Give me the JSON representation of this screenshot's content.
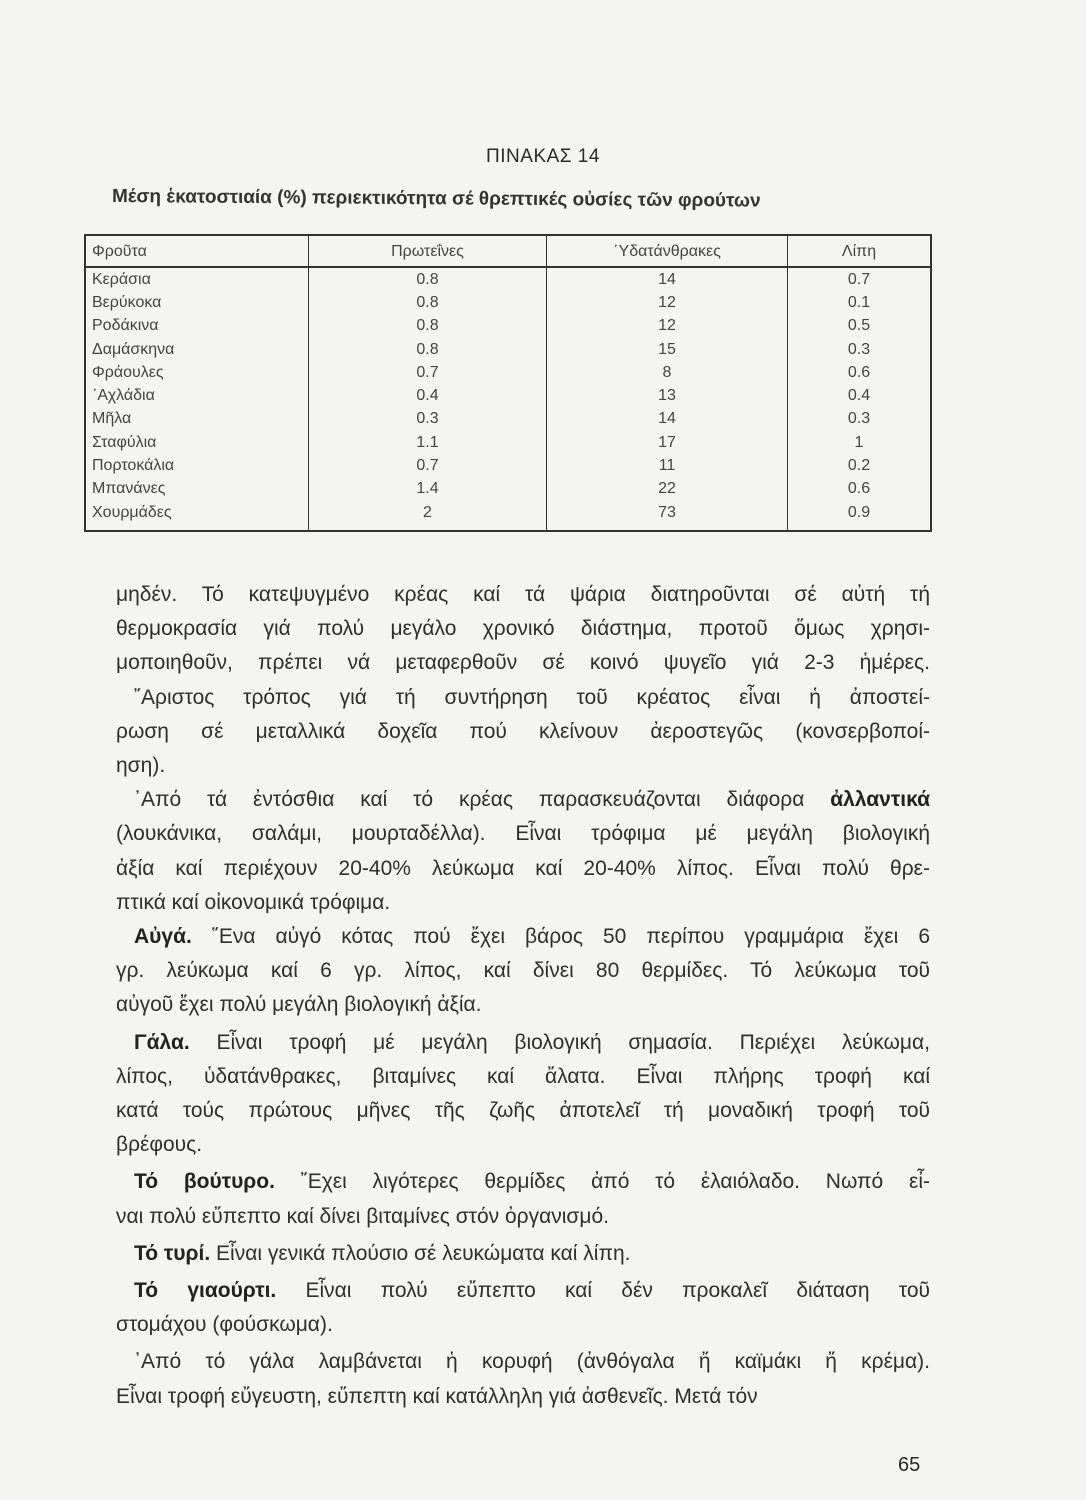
{
  "table": {
    "label": "ΠΙΝΑΚΑΣ 14",
    "caption": "Μέση ἑκατοστιαία (%) περιεκτικότητα σέ θρεπτικές οὐσίες τῶν φρούτων",
    "headers": [
      "Φροῦτα",
      "Πρωτεΐνες",
      "῾Υδατάνθρακες",
      "Λίπη"
    ],
    "rows": [
      [
        "Κεράσια",
        "0.8",
        "14",
        "0.7"
      ],
      [
        "Βερύκοκα",
        "0.8",
        "12",
        "0.1"
      ],
      [
        "Ροδάκινα",
        "0.8",
        "12",
        "0.5"
      ],
      [
        "Δαμάσκηνα",
        "0.8",
        "15",
        "0.3"
      ],
      [
        "Φράουλες",
        "0.7",
        "8",
        "0.6"
      ],
      [
        "᾽Αχλάδια",
        "0.4",
        "13",
        "0.4"
      ],
      [
        "Μῆλα",
        "0.3",
        "14",
        "0.3"
      ],
      [
        "Σταφύλια",
        "1.1",
        "17",
        "1"
      ],
      [
        "Πορτοκάλια",
        "0.7",
        "11",
        "0.2"
      ],
      [
        "Μπανάνες",
        "1.4",
        "22",
        "0.6"
      ],
      [
        "Χουρμάδες",
        "2",
        "73",
        "0.9"
      ]
    ]
  },
  "body": {
    "lines": [
      {
        "lead": "",
        "text": "μηδέν. Τό κατεψυγμένο κρέας καί τά ψάρια διατηροῦνται σέ αὐτή τή",
        "tail": ""
      },
      {
        "lead": "",
        "text": "θερμοκρασία γιά πολύ μεγάλο χρονικό διάστημα, προτοῦ ὅμως χρησι-",
        "tail": ""
      },
      {
        "lead": "",
        "text": "μοποιηθοῦν, πρέπει νά μεταφερθοῦν σέ κοινό ψυγεῖο γιά 2-3 ἡμέρες.",
        "tail": ""
      },
      {
        "lead": "",
        "text": "῎Αριστος τρόπος γιά τή συντήρηση τοῦ κρέατος εἶναι ἡ ἀποστεί-",
        "tail": ""
      },
      {
        "lead": "",
        "text": "ρωση σέ μεταλλικά δοχεῖα πού κλείνουν ἀεροστεγῶς (κονσερβοποί-",
        "tail": ""
      },
      {
        "lead": "",
        "text": "ηση).",
        "tail": ""
      },
      {
        "lead": "",
        "text": "᾽Από τά ἐντόσθια καί τό κρέας παρασκευάζονται διάφορα ",
        "tail": "ἀλλαντικά"
      },
      {
        "lead": "",
        "text": "(λουκάνικα, σαλάμι, μουρταδέλλα). Εἶναι τρόφιμα μέ μεγάλη βιολογική",
        "tail": ""
      },
      {
        "lead": "",
        "text": "ἀξία καί περιέχουν 20-40% λεύκωμα καί 20-40% λίπος. Εἶναι πολύ θρε-",
        "tail": ""
      },
      {
        "lead": "",
        "text": "πτικά καί οἰκονομικά τρόφιμα.",
        "tail": ""
      },
      {
        "lead": "Αὐγά.",
        "text": " ῞Ενα αὐγό κότας πού ἔχει βάρος 50 περίπου γραμμάρια ἔχει 6",
        "tail": ""
      },
      {
        "lead": "",
        "text": "γρ. λεύκωμα καί 6 γρ. λίπος, καί δίνει 80 θερμίδες. Τό λεύκωμα τοῦ",
        "tail": ""
      },
      {
        "lead": "",
        "text": "αὐγοῦ ἔχει πολύ μεγάλη βιολογική ἀξία.",
        "tail": ""
      },
      {
        "lead": "Γάλα.",
        "text": " Εἶναι τροφή μέ μεγάλη βιολογική σημασία. Περιέχει λεύκωμα,",
        "tail": ""
      },
      {
        "lead": "",
        "text": "λίπος, ὑδατάνθρακες, βιταμίνες καί ἄλατα. Εἶναι πλήρης τροφή καί",
        "tail": ""
      },
      {
        "lead": "",
        "text": "κατά τούς πρώτους μῆνες τῆς ζωῆς ἀποτελεῖ τή μοναδική τροφή τοῦ",
        "tail": ""
      },
      {
        "lead": "",
        "text": "βρέφους.",
        "tail": ""
      },
      {
        "lead": "Τό βούτυρο.",
        "text": " ῎Εχει λιγότερες θερμίδες ἀπό τό ἐλαιόλαδο. Νωπό εἶ-",
        "tail": ""
      },
      {
        "lead": "",
        "text": "ναι πολύ εὔπεπτο καί δίνει βιταμίνες στόν ὀργανισμό.",
        "tail": ""
      },
      {
        "lead": "Τό τυρί.",
        "text": " Εἶναι γενικά πλούσιο σέ λευκώματα καί λίπη.",
        "tail": ""
      },
      {
        "lead": "Τό γιαούρτι.",
        "text": " Εἶναι πολύ εὔπεπτο καί δέν προκαλεῖ διάταση τοῦ",
        "tail": ""
      },
      {
        "lead": "",
        "text": "στομάχου (φούσκωμα).",
        "tail": ""
      },
      {
        "lead": "",
        "text": "᾽Από τό γάλα λαμβάνεται ἡ κορυφή (ἀνθόγαλα ἤ καϊμάκι ἤ κρέμα).",
        "tail": ""
      },
      {
        "lead": "",
        "text": "Εἶναι τροφή εὔγευστη, εὔπεπτη καί κατάλληλη γιά ἀσθενεῖς. Μετά τόν",
        "tail": ""
      }
    ]
  },
  "page_number": "65"
}
